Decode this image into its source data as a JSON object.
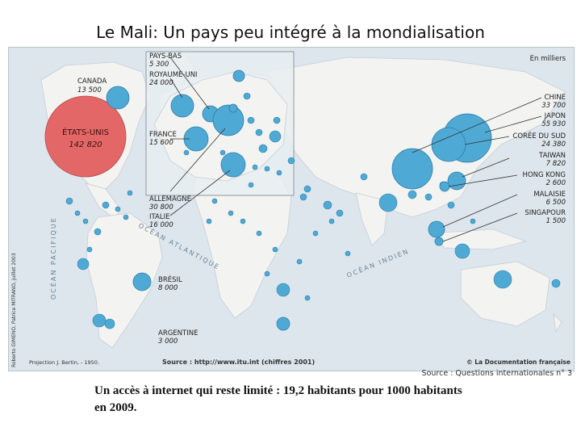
{
  "page_title": "Le Mali: Un pays peu intégré à la mondialisation",
  "map": {
    "unit_note": "En milliers",
    "projection": "Projection J. Bertin, - 1950.",
    "source": "Source : http://www.itu.int (chiffres 2001)",
    "publisher": "© La Documentation française",
    "credit": "Roberto GIMENO, Patrice MITRANO, juillet 2003",
    "oceans": {
      "pacific": "OCÉAN PACIFIQUE",
      "atlantic": "OCÉAN ATLANTIQUE",
      "indian": "OCÉAN INDIEN"
    },
    "colors": {
      "sea": "#dde6ec",
      "land": "#f3f3f1",
      "bubble": "#4ea9d4",
      "usa_bubble": "#e36767"
    },
    "countries": [
      {
        "name": "ÉTATS-UNIS",
        "value": "142 820"
      },
      {
        "name": "CANADA",
        "value": "13 500"
      },
      {
        "name": "PAYS-BAS",
        "value": "5 300"
      },
      {
        "name": "ROYAUME-UNI",
        "value": "24 000"
      },
      {
        "name": "FRANCE",
        "value": "15 600"
      },
      {
        "name": "ALLEMAGNE",
        "value": "30 800"
      },
      {
        "name": "ITALIE",
        "value": "16 000"
      },
      {
        "name": "BRÉSIL",
        "value": "8 000"
      },
      {
        "name": "ARGENTINE",
        "value": "3 000"
      },
      {
        "name": "CHINE",
        "value": "33 700"
      },
      {
        "name": "JAPON",
        "value": "55 930"
      },
      {
        "name": "CORÉE DU SUD",
        "value": "24 380"
      },
      {
        "name": "TAIWAN",
        "value": "7 820"
      },
      {
        "name": "HONG KONG",
        "value": "2 600"
      },
      {
        "name": "MALAISIE",
        "value": "6 500"
      },
      {
        "name": "SINGAPOUR",
        "value": "1 500"
      }
    ]
  },
  "source_outside": "Source : Questions internationales n° 3",
  "caption": "Un accès à internet qui reste limité : 19,2 habitants pour 1000 habitants en 2009."
}
